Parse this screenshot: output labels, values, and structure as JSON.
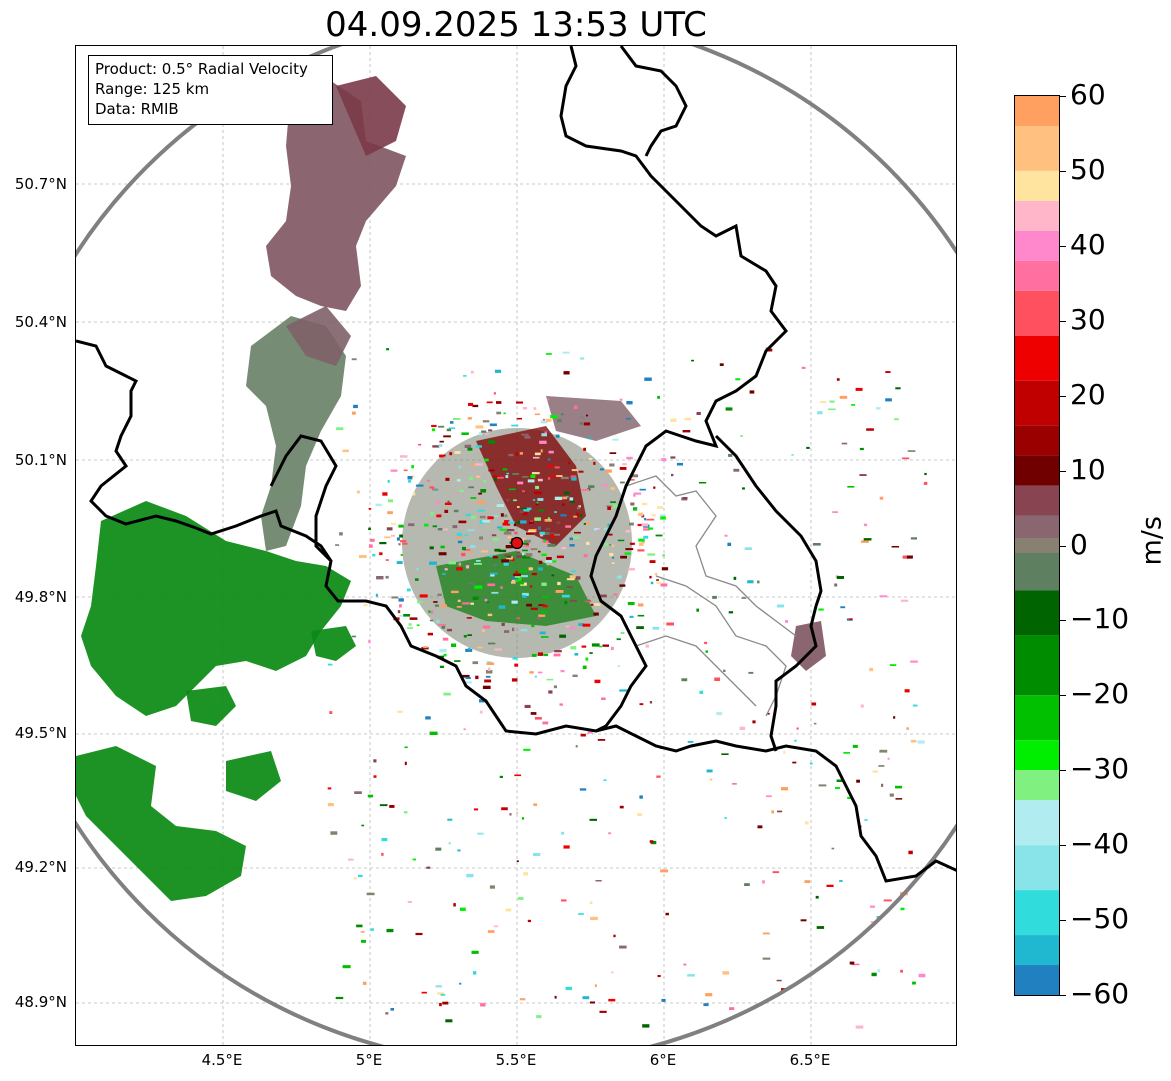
{
  "title": "04.09.2025 13:53 UTC",
  "info": {
    "product": "Product: 0.5° Radial Velocity",
    "range": "Range: 125 km",
    "data_source": "Data: RMIB"
  },
  "map": {
    "lon_range": [
      4.0,
      7.0
    ],
    "lat_range": [
      48.8,
      50.98
    ],
    "radar_site": {
      "lon": 5.5,
      "lat": 49.92
    },
    "range_ring_color": "#808080",
    "border_color": "#000000"
  },
  "axes": {
    "lat_ticks": [
      {
        "value": 50.7,
        "label": "50.7°N"
      },
      {
        "value": 50.4,
        "label": "50.4°N"
      },
      {
        "value": 50.1,
        "label": "50.1°N"
      },
      {
        "value": 49.8,
        "label": "49.8°N"
      },
      {
        "value": 49.5,
        "label": "49.5°N"
      },
      {
        "value": 49.2,
        "label": "49.2°N"
      },
      {
        "value": 48.9,
        "label": "48.9°N"
      }
    ],
    "lon_ticks": [
      {
        "value": 4.5,
        "label": "4.5°E"
      },
      {
        "value": 5.0,
        "label": "5°E"
      },
      {
        "value": 5.5,
        "label": "5.5°E"
      },
      {
        "value": 6.0,
        "label": "6°E"
      },
      {
        "value": 6.5,
        "label": "6.5°E"
      }
    ]
  },
  "colorbar": {
    "unit": "m/s",
    "min": -60,
    "max": 60,
    "ticks": [
      {
        "value": 60,
        "label": "60"
      },
      {
        "value": 50,
        "label": "50"
      },
      {
        "value": 40,
        "label": "40"
      },
      {
        "value": 30,
        "label": "30"
      },
      {
        "value": 20,
        "label": "20"
      },
      {
        "value": 10,
        "label": "10"
      },
      {
        "value": 0,
        "label": "0"
      },
      {
        "value": -10,
        "label": "−10"
      },
      {
        "value": -20,
        "label": "−20"
      },
      {
        "value": -30,
        "label": "−30"
      },
      {
        "value": -40,
        "label": "−40"
      },
      {
        "value": -50,
        "label": "−50"
      },
      {
        "value": -60,
        "label": "−60"
      }
    ],
    "stops": [
      {
        "from": 56,
        "to": 60,
        "color": "#ffa060"
      },
      {
        "from": 50,
        "to": 56,
        "color": "#ffc080"
      },
      {
        "from": 46,
        "to": 50,
        "color": "#ffe4a0"
      },
      {
        "from": 42,
        "to": 46,
        "color": "#ffb6c8"
      },
      {
        "from": 38,
        "to": 42,
        "color": "#ff88cc"
      },
      {
        "from": 34,
        "to": 38,
        "color": "#ff70a0"
      },
      {
        "from": 28,
        "to": 34,
        "color": "#ff5060"
      },
      {
        "from": 22,
        "to": 28,
        "color": "#ee0000"
      },
      {
        "from": 16,
        "to": 22,
        "color": "#c00000"
      },
      {
        "from": 12,
        "to": 16,
        "color": "#9a0000"
      },
      {
        "from": 8,
        "to": 12,
        "color": "#700000"
      },
      {
        "from": 4,
        "to": 8,
        "color": "#884450"
      },
      {
        "from": 1,
        "to": 4,
        "color": "#8a6670"
      },
      {
        "from": -1,
        "to": 1,
        "color": "#888070"
      },
      {
        "from": -6,
        "to": -1,
        "color": "#5e8060"
      },
      {
        "from": -12,
        "to": -6,
        "color": "#006400"
      },
      {
        "from": -20,
        "to": -12,
        "color": "#008c00"
      },
      {
        "from": -26,
        "to": -20,
        "color": "#00c000"
      },
      {
        "from": -30,
        "to": -26,
        "color": "#00ee00"
      },
      {
        "from": -34,
        "to": -30,
        "color": "#80f080"
      },
      {
        "from": -40,
        "to": -34,
        "color": "#b0ecf0"
      },
      {
        "from": -46,
        "to": -40,
        "color": "#88e4e8"
      },
      {
        "from": -52,
        "to": -46,
        "color": "#30dcdc"
      },
      {
        "from": -56,
        "to": -52,
        "color": "#20b8d0"
      },
      {
        "from": -60,
        "to": -56,
        "color": "#2080c0"
      }
    ]
  }
}
